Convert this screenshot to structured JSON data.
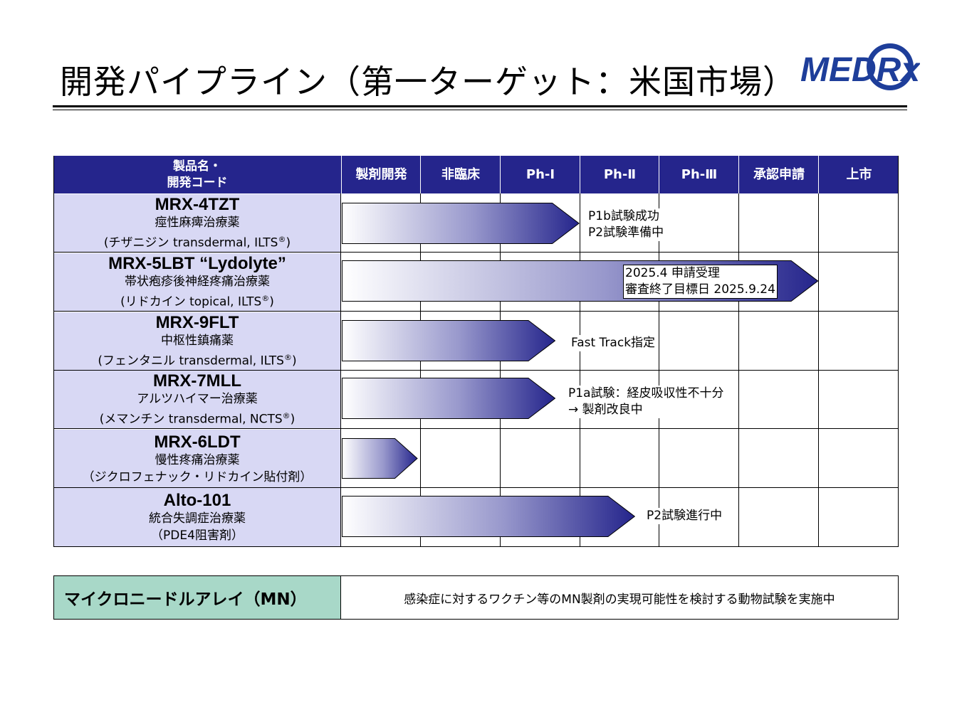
{
  "title": "開発パイプライン（第一ターゲット：米国市場）",
  "logo": {
    "text": "MEDRx",
    "color": "#1e3e9a"
  },
  "colors": {
    "header": "#25258c",
    "product_cell": "#d8d8f4",
    "mn_cell": "#a8d8c8",
    "bar_dark": "#25258c"
  },
  "header": {
    "product_col_line1": "製品名・",
    "product_col_line2": "開発コード",
    "stages": [
      "製剤開発",
      "非臨床",
      "Ph-Ⅰ",
      "Ph-Ⅱ",
      "Ph-Ⅲ",
      "承認申請",
      "上市"
    ]
  },
  "products": [
    {
      "name": "MRX-4TZT",
      "indication": "痙性麻痺治療薬",
      "generic_pre": "(チザニジン transdermal, ILTS",
      "generic_post": ")",
      "progress_stages": 3.0,
      "note": [
        "P1b試験成功",
        "P2試験準備中"
      ]
    },
    {
      "name": "MRX-5LBT “Lydolyte”",
      "indication": "帯状疱疹後神経疼痛治療薬",
      "generic_pre": "(リドカイン topical, ILTS",
      "generic_post": ")",
      "progress_stages": 6.0,
      "note": [
        "2025.4 申請受理",
        "審査終了目標日 2025.9.24"
      ]
    },
    {
      "name": "MRX-9FLT",
      "indication": "中枢性鎮痛薬",
      "generic_pre": "(フェンタニル transdermal, ILTS",
      "generic_post": ")",
      "progress_stages": 2.7,
      "note": [
        "Fast Track指定"
      ]
    },
    {
      "name": "MRX-7MLL",
      "indication": "アルツハイマー治療薬",
      "generic_pre": "(メマンチン transdermal, NCTS",
      "generic_post": ")",
      "progress_stages": 2.7,
      "note": [
        "P1a試験：経皮吸収性不十分",
        "→ 製剤改良中"
      ]
    },
    {
      "name": "MRX-6LDT",
      "indication": "慢性疼痛治療薬",
      "generic_pre": "（ジクロフェナック・リドカイン貼付剤）",
      "generic_post": "",
      "progress_stages": 0.97,
      "note": []
    },
    {
      "name": "Alto-101",
      "indication": "統合失調症治療薬",
      "generic_pre": "（PDE4阻害剤）",
      "generic_post": "",
      "progress_stages": 3.7,
      "note": [
        "P2試験進行中"
      ]
    }
  ],
  "registered_mark": "®",
  "mn": {
    "label": "マイクロニードルアレイ（MN）",
    "description": "感染症に対するワクチン等のMN製剤の実現可能性を検討する動物試験を実施中"
  }
}
